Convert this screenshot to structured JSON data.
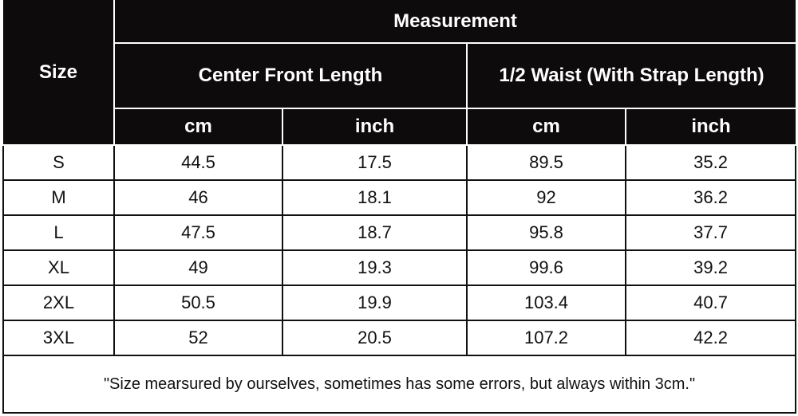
{
  "header": {
    "size": "Size",
    "measurement": "Measurement",
    "groups": [
      "Center Front Length",
      "1/2 Waist (With Strap Length)"
    ],
    "units": [
      "cm",
      "inch",
      "cm",
      "inch"
    ]
  },
  "rows": [
    [
      "S",
      "44.5",
      "17.5",
      "89.5",
      "35.2"
    ],
    [
      "M",
      "46",
      "18.1",
      "92",
      "36.2"
    ],
    [
      "L",
      "47.5",
      "18.7",
      "95.8",
      "37.7"
    ],
    [
      "XL",
      "49",
      "19.3",
      "99.6",
      "39.2"
    ],
    [
      "2XL",
      "50.5",
      "19.9",
      "103.4",
      "40.7"
    ],
    [
      "3XL",
      "52",
      "20.5",
      "107.2",
      "42.2"
    ]
  ],
  "note": "\"Size mearsured by ourselves, sometimes has some errors, but always within 3cm.\""
}
